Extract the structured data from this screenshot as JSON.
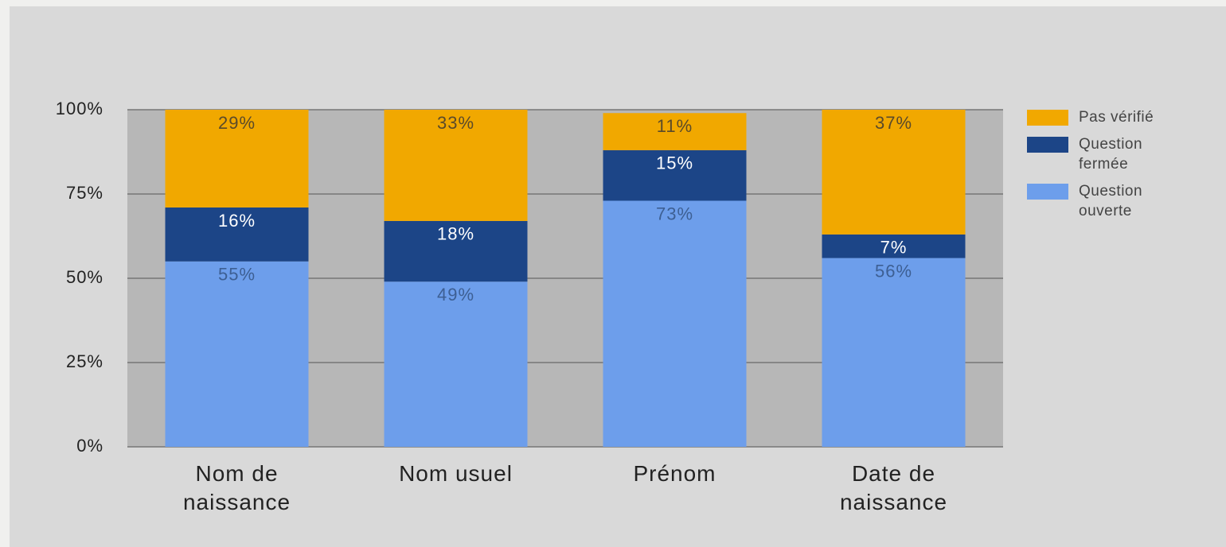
{
  "chart_data": {
    "type": "stacked_bar",
    "categories": [
      "Nom de naissance",
      "Nom usuel",
      "Prénom",
      "Date de naissance"
    ],
    "series": [
      {
        "name": "Question ouverte",
        "color": "#6d9eeb",
        "label_color": "#3d5f93",
        "values": [
          55,
          49,
          73,
          56
        ],
        "value_labels": [
          "55%",
          "49%",
          "73%",
          "56%"
        ]
      },
      {
        "name": "Question fermée",
        "color": "#1c4587",
        "label_color": "#ffffff",
        "values": [
          16,
          18,
          15,
          7
        ],
        "value_labels": [
          "16%",
          "18%",
          "15%",
          "7%"
        ]
      },
      {
        "name": "Pas vérifié",
        "color": "#f1a800",
        "label_color": "#5a4a2a",
        "values": [
          29,
          33,
          11,
          37
        ],
        "value_labels": [
          "29%",
          "33%",
          "11%",
          "37%"
        ]
      }
    ],
    "ylim": [
      0,
      100
    ],
    "yticks": [
      {
        "value": 0,
        "label": "0%"
      },
      {
        "value": 25,
        "label": "25%"
      },
      {
        "value": 50,
        "label": "50%"
      },
      {
        "value": 75,
        "label": "75%"
      },
      {
        "value": 100,
        "label": "100%"
      }
    ],
    "grid": true,
    "legend": "right"
  }
}
